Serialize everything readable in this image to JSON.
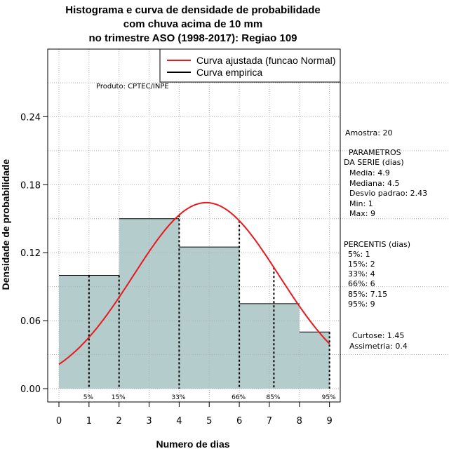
{
  "chart_data": {
    "type": "bar",
    "title_lines": [
      "Histograma e curva de densidade de probabilidade",
      "com chuva acima de 10 mm",
      "no trimestre ASO (1998-2017): Regiao 109"
    ],
    "xlabel": "Numero de dias",
    "ylabel": "Densidade de probabilidade",
    "xlim": [
      0,
      9
    ],
    "ylim": [
      0,
      0.3
    ],
    "x_ticks": [
      "0",
      "1",
      "2",
      "3",
      "4",
      "5",
      "6",
      "7",
      "8",
      "9"
    ],
    "y_ticks": [
      "0.00",
      "0.06",
      "0.12",
      "0.18",
      "0.24"
    ],
    "y_tick_values": [
      0,
      0.06,
      0.12,
      0.18,
      0.24
    ],
    "bins": [
      {
        "from": 0,
        "to": 2,
        "density": 0.1
      },
      {
        "from": 2,
        "to": 4,
        "density": 0.15
      },
      {
        "from": 4,
        "to": 6,
        "density": 0.125
      },
      {
        "from": 6,
        "to": 8,
        "density": 0.075
      },
      {
        "from": 8,
        "to": 9,
        "density": 0.05
      }
    ],
    "normal_fit": {
      "mean": 4.9,
      "sd": 2.43
    },
    "percentile_lines": [
      {
        "label": "5%",
        "x": 1
      },
      {
        "label": "15%",
        "x": 2
      },
      {
        "label": "33%",
        "x": 4
      },
      {
        "label": "66%",
        "x": 6
      },
      {
        "label": "85%",
        "x": 7.15
      },
      {
        "label": "95%",
        "x": 9
      }
    ],
    "legend": {
      "position": "top-right",
      "entries": [
        {
          "label": "Curva ajustada (funcao Normal)",
          "color": "#e8191d"
        },
        {
          "label": "Curva empirica",
          "color": "#000000"
        }
      ]
    },
    "colors": {
      "bar_fill": "#b4cccb",
      "curve": "#e8191d",
      "grid": "#b0b0b0"
    }
  },
  "produto_label": "Produto: CPTEC/INPE",
  "stats": {
    "amostra": "Amostra: 20",
    "param_header_1": "PARAMETROS",
    "param_header_2": "DA SERIE (dias)",
    "params": [
      "Media: 4.9",
      "Mediana: 4.5",
      "Desvio padrao: 2.43",
      "Min: 1",
      "Max: 9"
    ],
    "percentis_header": "PERCENTIS (dias)",
    "percentis": [
      "5%: 1",
      "15%: 2",
      "33%: 4",
      "66%: 6",
      "85%: 7.15",
      "95%: 9"
    ],
    "curtose": "Curtose: 1.45",
    "assimetria": "Assimetria: 0.4"
  }
}
